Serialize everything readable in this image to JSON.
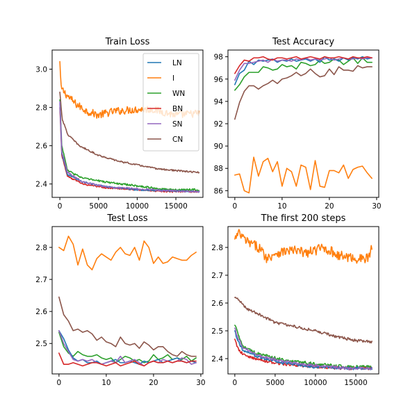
{
  "colors": {
    "LN": "#1f77b4",
    "I": "#ff7f0e",
    "WN": "#2ca02c",
    "BN": "#d62728",
    "SN": "#9467bd",
    "CN": "#8c564b"
  },
  "chart_data": [
    {
      "id": "train_loss",
      "type": "line",
      "title": "Train Loss",
      "xlim": [
        -1000,
        18500
      ],
      "ylim": [
        2.33,
        3.1
      ],
      "xticks": [
        0,
        5000,
        10000,
        15000
      ],
      "yticks": [
        2.4,
        2.6,
        2.8,
        3.0
      ],
      "ytick_labels": [
        "2.4",
        "2.6",
        "2.8",
        "3.0"
      ],
      "legend": {
        "placement": "upper right",
        "entries": [
          "LN",
          "I",
          "WN",
          "BN",
          "SN",
          "CN"
        ]
      },
      "series": [
        {
          "name": "I",
          "model": "curve",
          "x_max": 18000,
          "points": 220,
          "profile": [
            [
              0,
              3.04
            ],
            [
              150,
              2.9
            ],
            [
              1000,
              2.86
            ],
            [
              2000,
              2.82
            ],
            [
              3500,
              2.78
            ],
            [
              5000,
              2.76
            ],
            [
              7000,
              2.78
            ],
            [
              10000,
              2.79
            ],
            [
              12000,
              2.79
            ],
            [
              15000,
              2.76
            ],
            [
              18000,
              2.77
            ]
          ],
          "noise": 0.02
        },
        {
          "name": "CN",
          "model": "curve",
          "x_max": 18000,
          "points": 220,
          "profile": [
            [
              0,
              2.88
            ],
            [
              300,
              2.74
            ],
            [
              1000,
              2.66
            ],
            [
              2500,
              2.6
            ],
            [
              5000,
              2.55
            ],
            [
              7500,
              2.52
            ],
            [
              10000,
              2.5
            ],
            [
              12500,
              2.48
            ],
            [
              15000,
              2.47
            ],
            [
              18000,
              2.46
            ]
          ],
          "noise": 0.004
        },
        {
          "name": "WN",
          "model": "curve",
          "x_max": 18000,
          "points": 220,
          "profile": [
            [
              0,
              2.84
            ],
            [
              250,
              2.6
            ],
            [
              1000,
              2.47
            ],
            [
              3000,
              2.43
            ],
            [
              6000,
              2.41
            ],
            [
              10000,
              2.39
            ],
            [
              14000,
              2.37
            ],
            [
              18000,
              2.37
            ]
          ],
          "noise": 0.005
        },
        {
          "name": "BN",
          "model": "curve",
          "x_max": 18000,
          "points": 220,
          "profile": [
            [
              0,
              2.8
            ],
            [
              250,
              2.55
            ],
            [
              1000,
              2.44
            ],
            [
              3000,
              2.4
            ],
            [
              6000,
              2.38
            ],
            [
              10000,
              2.37
            ],
            [
              14000,
              2.36
            ],
            [
              18000,
              2.36
            ]
          ],
          "noise": 0.004
        },
        {
          "name": "LN",
          "model": "curve",
          "x_max": 18000,
          "points": 220,
          "profile": [
            [
              0,
              2.82
            ],
            [
              250,
              2.56
            ],
            [
              1000,
              2.45
            ],
            [
              3000,
              2.41
            ],
            [
              6000,
              2.385
            ],
            [
              10000,
              2.37
            ],
            [
              14000,
              2.365
            ],
            [
              18000,
              2.36
            ]
          ],
          "noise": 0.004
        },
        {
          "name": "SN",
          "model": "curve",
          "x_max": 18000,
          "points": 220,
          "profile": [
            [
              0,
              2.83
            ],
            [
              250,
              2.57
            ],
            [
              1000,
              2.46
            ],
            [
              3000,
              2.41
            ],
            [
              6000,
              2.385
            ],
            [
              10000,
              2.375
            ],
            [
              14000,
              2.365
            ],
            [
              18000,
              2.36
            ]
          ],
          "noise": 0.004
        }
      ]
    },
    {
      "id": "test_accuracy",
      "type": "line",
      "title": "Test Accuracy",
      "xlim": [
        -1.45,
        30.45
      ],
      "ylim": [
        85.4,
        98.6
      ],
      "xticks": [
        0,
        10,
        20,
        30
      ],
      "yticks": [
        86,
        88,
        90,
        92,
        94,
        96,
        98
      ],
      "ytick_labels": [
        "86",
        "88",
        "90",
        "92",
        "94",
        "96",
        "98"
      ],
      "series": [
        {
          "name": "I",
          "x_start": 0,
          "values": [
            87.4,
            87.5,
            86.0,
            85.8,
            89.0,
            87.3,
            88.6,
            88.9,
            87.7,
            88.6,
            86.4,
            88.0,
            87.7,
            86.4,
            88.3,
            88.1,
            86.1,
            88.7,
            86.4,
            86.3,
            87.8,
            87.8,
            87.6,
            88.3,
            87.1,
            87.9,
            88.1,
            88.2,
            87.6,
            87.1
          ]
        },
        {
          "name": "CN",
          "x_start": 0,
          "values": [
            92.4,
            93.9,
            94.9,
            95.4,
            95.4,
            95.1,
            95.4,
            95.6,
            95.9,
            95.6,
            96.0,
            96.1,
            96.3,
            96.6,
            96.3,
            96.5,
            96.9,
            96.5,
            96.2,
            96.3,
            96.9,
            96.4,
            97.1,
            96.8,
            96.8,
            96.7,
            97.2,
            97.0,
            97.1,
            97.1
          ]
        },
        {
          "name": "WN",
          "x_start": 0,
          "values": [
            95.0,
            95.5,
            96.2,
            96.6,
            96.6,
            96.6,
            97.1,
            97.0,
            96.8,
            96.9,
            97.3,
            97.1,
            97.2,
            96.9,
            97.5,
            97.4,
            97.2,
            97.3,
            97.7,
            97.4,
            97.5,
            97.8,
            97.7,
            97.3,
            97.6,
            97.9,
            97.4,
            97.9,
            97.5,
            97.5
          ]
        },
        {
          "name": "LN",
          "x_start": 0,
          "values": [
            95.5,
            96.5,
            96.8,
            97.6,
            97.3,
            97.7,
            97.6,
            97.7,
            97.8,
            97.5,
            97.7,
            97.6,
            97.8,
            97.6,
            97.7,
            97.8,
            97.6,
            97.8,
            97.5,
            98.0,
            97.7,
            97.8,
            97.6,
            97.9,
            97.7,
            97.9,
            97.8,
            98.0,
            97.8,
            97.9
          ]
        },
        {
          "name": "SN",
          "x_start": 0,
          "values": [
            95.9,
            96.8,
            97.4,
            97.4,
            97.5,
            97.6,
            97.7,
            97.5,
            97.8,
            97.6,
            97.7,
            97.7,
            97.6,
            97.8,
            97.7,
            97.9,
            97.7,
            97.8,
            97.7,
            97.8,
            97.9,
            97.7,
            97.8,
            97.9,
            97.8,
            97.8,
            97.9,
            97.8,
            97.9,
            97.9
          ]
        },
        {
          "name": "BN",
          "x_start": 0,
          "values": [
            96.5,
            97.2,
            97.7,
            97.6,
            97.9,
            97.9,
            98.0,
            97.8,
            97.7,
            97.9,
            97.9,
            97.8,
            97.9,
            98.0,
            97.8,
            97.9,
            98.0,
            97.9,
            97.8,
            98.0,
            97.9,
            97.9,
            98.0,
            97.9,
            97.8,
            98.0,
            97.9,
            97.9,
            98.0,
            97.9
          ]
        }
      ]
    },
    {
      "id": "test_loss",
      "type": "line",
      "title": "Test Loss",
      "xlim": [
        -1.45,
        30.45
      ],
      "ylim": [
        2.405,
        2.865
      ],
      "xticks": [
        0,
        10,
        20,
        30
      ],
      "yticks": [
        2.5,
        2.6,
        2.7,
        2.8
      ],
      "ytick_labels": [
        "2.5",
        "2.6",
        "2.7",
        "2.8"
      ],
      "series": [
        {
          "name": "I",
          "x_start": 0,
          "values": [
            2.8,
            2.79,
            2.835,
            2.81,
            2.745,
            2.795,
            2.745,
            2.73,
            2.765,
            2.78,
            2.77,
            2.76,
            2.785,
            2.8,
            2.78,
            2.775,
            2.8,
            2.76,
            2.82,
            2.8,
            2.75,
            2.77,
            2.75,
            2.755,
            2.77,
            2.765,
            2.76,
            2.76,
            2.775,
            2.785
          ]
        },
        {
          "name": "CN",
          "x_start": 0,
          "values": [
            2.645,
            2.59,
            2.57,
            2.54,
            2.545,
            2.535,
            2.54,
            2.53,
            2.51,
            2.52,
            2.505,
            2.5,
            2.49,
            2.52,
            2.5,
            2.495,
            2.5,
            2.485,
            2.505,
            2.495,
            2.48,
            2.49,
            2.49,
            2.475,
            2.465,
            2.46,
            2.475,
            2.465,
            2.46,
            2.46
          ]
        },
        {
          "name": "WN",
          "x_start": 0,
          "values": [
            2.535,
            2.49,
            2.47,
            2.46,
            2.475,
            2.465,
            2.46,
            2.46,
            2.465,
            2.455,
            2.45,
            2.455,
            2.44,
            2.45,
            2.46,
            2.455,
            2.445,
            2.45,
            2.44,
            2.445,
            2.465,
            2.45,
            2.455,
            2.465,
            2.45,
            2.455,
            2.45,
            2.46,
            2.445,
            2.455
          ]
        },
        {
          "name": "LN",
          "x_start": 0,
          "values": [
            2.54,
            2.515,
            2.48,
            2.455,
            2.445,
            2.45,
            2.44,
            2.44,
            2.445,
            2.435,
            2.44,
            2.445,
            2.45,
            2.44,
            2.44,
            2.445,
            2.44,
            2.435,
            2.445,
            2.44,
            2.445,
            2.45,
            2.44,
            2.445,
            2.45,
            2.455,
            2.445,
            2.44,
            2.445,
            2.44
          ]
        },
        {
          "name": "SN",
          "x_start": 0,
          "values": [
            2.54,
            2.5,
            2.475,
            2.45,
            2.445,
            2.45,
            2.445,
            2.45,
            2.44,
            2.435,
            2.44,
            2.445,
            2.44,
            2.46,
            2.44,
            2.445,
            2.45,
            2.44,
            2.43,
            2.44,
            2.445,
            2.44,
            2.45,
            2.445,
            2.44,
            2.445,
            2.455,
            2.45,
            2.435,
            2.44
          ]
        },
        {
          "name": "BN",
          "x_start": 0,
          "values": [
            2.47,
            2.435,
            2.435,
            2.44,
            2.435,
            2.43,
            2.435,
            2.44,
            2.44,
            2.435,
            2.43,
            2.435,
            2.44,
            2.43,
            2.435,
            2.44,
            2.445,
            2.435,
            2.43,
            2.44,
            2.445,
            2.44,
            2.44,
            2.445,
            2.44,
            2.445,
            2.445,
            2.44,
            2.445,
            2.445
          ]
        }
      ]
    },
    {
      "id": "first_200_steps",
      "type": "line",
      "title": "The first 200 steps",
      "xlim": [
        -850,
        17850
      ],
      "ylim": [
        2.345,
        2.875
      ],
      "xticks": [
        0,
        5000,
        10000,
        15000
      ],
      "yticks": [
        2.4,
        2.5,
        2.6,
        2.7,
        2.8
      ],
      "ytick_labels": [
        "2.4",
        "2.5",
        "2.6",
        "2.7",
        "2.8"
      ],
      "series": [
        {
          "name": "I",
          "model": "curve",
          "x_max": 17000,
          "points": 200,
          "profile": [
            [
              0,
              2.83
            ],
            [
              500,
              2.85
            ],
            [
              1500,
              2.82
            ],
            [
              3000,
              2.8
            ],
            [
              4000,
              2.76
            ],
            [
              5000,
              2.78
            ],
            [
              7000,
              2.79
            ],
            [
              9000,
              2.78
            ],
            [
              11000,
              2.8
            ],
            [
              13000,
              2.77
            ],
            [
              15000,
              2.76
            ],
            [
              16500,
              2.76
            ],
            [
              17000,
              2.8
            ]
          ],
          "noise": 0.018
        },
        {
          "name": "CN",
          "model": "curve",
          "x_max": 17000,
          "points": 200,
          "profile": [
            [
              0,
              2.62
            ],
            [
              500,
              2.61
            ],
            [
              1500,
              2.58
            ],
            [
              3000,
              2.56
            ],
            [
              5000,
              2.53
            ],
            [
              7500,
              2.515
            ],
            [
              10000,
              2.5
            ],
            [
              12500,
              2.48
            ],
            [
              15000,
              2.465
            ],
            [
              17000,
              2.46
            ]
          ],
          "noise": 0.005
        },
        {
          "name": "WN",
          "model": "curve",
          "x_max": 17000,
          "points": 200,
          "profile": [
            [
              0,
              2.52
            ],
            [
              300,
              2.5
            ],
            [
              1000,
              2.445
            ],
            [
              3000,
              2.415
            ],
            [
              6000,
              2.395
            ],
            [
              10000,
              2.38
            ],
            [
              14000,
              2.37
            ],
            [
              17000,
              2.37
            ]
          ],
          "noise": 0.006
        },
        {
          "name": "BN",
          "model": "curve",
          "x_max": 17000,
          "points": 200,
          "profile": [
            [
              0,
              2.47
            ],
            [
              300,
              2.44
            ],
            [
              1000,
              2.415
            ],
            [
              3000,
              2.395
            ],
            [
              6000,
              2.38
            ],
            [
              10000,
              2.37
            ],
            [
              14000,
              2.365
            ],
            [
              17000,
              2.365
            ]
          ],
          "noise": 0.005
        },
        {
          "name": "LN",
          "model": "curve",
          "x_max": 17000,
          "points": 200,
          "profile": [
            [
              0,
              2.5
            ],
            [
              300,
              2.47
            ],
            [
              1000,
              2.43
            ],
            [
              3000,
              2.405
            ],
            [
              6000,
              2.385
            ],
            [
              10000,
              2.37
            ],
            [
              14000,
              2.365
            ],
            [
              17000,
              2.365
            ]
          ],
          "noise": 0.005
        },
        {
          "name": "SN",
          "model": "curve",
          "x_max": 17000,
          "points": 200,
          "profile": [
            [
              0,
              2.51
            ],
            [
              300,
              2.48
            ],
            [
              1000,
              2.44
            ],
            [
              3000,
              2.41
            ],
            [
              6000,
              2.39
            ],
            [
              10000,
              2.375
            ],
            [
              14000,
              2.365
            ],
            [
              17000,
              2.365
            ]
          ],
          "noise": 0.005
        }
      ]
    }
  ]
}
